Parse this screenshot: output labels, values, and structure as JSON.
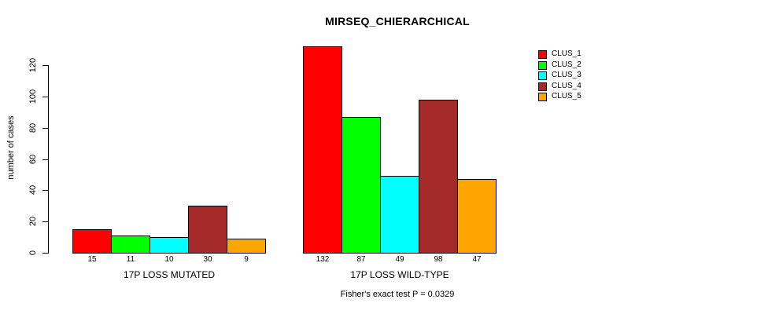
{
  "chart_data": {
    "type": "bar",
    "title": "MIRSEQ_CHIERARCHICAL",
    "ylabel": "number of cases",
    "xlabel": "",
    "categories": [
      "17P LOSS MUTATED",
      "17P LOSS WILD-TYPE"
    ],
    "series": [
      {
        "name": "CLUS_1",
        "color": "#FF0000",
        "values": [
          15,
          132
        ]
      },
      {
        "name": "CLUS_2",
        "color": "#00FF00",
        "values": [
          11,
          87
        ]
      },
      {
        "name": "CLUS_3",
        "color": "#00FFFF",
        "values": [
          10,
          49
        ]
      },
      {
        "name": "CLUS_4",
        "color": "#A52A2A",
        "values": [
          30,
          98
        ]
      },
      {
        "name": "CLUS_5",
        "color": "#FFA500",
        "values": [
          9,
          47
        ]
      }
    ],
    "yticks": [
      0,
      20,
      40,
      60,
      80,
      100,
      120
    ],
    "ylim": [
      0,
      132
    ],
    "grid": false,
    "bar_value_labels": true,
    "legend_position": "top-right",
    "annotation": "Fisher's exact test P = 0.0329"
  }
}
